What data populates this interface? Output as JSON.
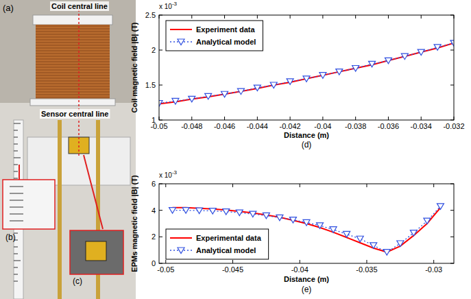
{
  "photo": {
    "panel_label": "(a)",
    "labels": [
      "Coil central line",
      "Sensor central line"
    ],
    "insets": [
      "(b)",
      "(c)"
    ]
  },
  "chart_data": [
    {
      "type": "line",
      "panel_label": "(d)",
      "x_label": "Distance (m)",
      "y_label": "Coil magnetic field |B| (T)",
      "annotations": [
        {
          "text": "x 10",
          "superscript": "-3"
        }
      ],
      "x": [
        -0.05,
        -0.049,
        -0.048,
        -0.047,
        -0.046,
        -0.045,
        -0.044,
        -0.043,
        -0.042,
        -0.041,
        -0.04,
        -0.039,
        -0.038,
        -0.037,
        -0.036,
        -0.035,
        -0.034,
        -0.033,
        -0.032
      ],
      "xlim": [
        -0.05,
        -0.032
      ],
      "xticks": [
        -0.05,
        -0.048,
        -0.046,
        -0.044,
        -0.042,
        -0.04,
        -0.038,
        -0.036,
        -0.034,
        -0.032
      ],
      "ylim": [
        1,
        2.5
      ],
      "yticks": [
        1,
        1.5,
        2,
        2.5
      ],
      "legend": "upper left",
      "series": [
        {
          "name": "Experiment data",
          "color": "#ff0000",
          "line_style": "solid",
          "marker": "none",
          "values": [
            1.23,
            1.26,
            1.3,
            1.33,
            1.37,
            1.41,
            1.45,
            1.5,
            1.54,
            1.59,
            1.64,
            1.69,
            1.74,
            1.79,
            1.85,
            1.91,
            1.97,
            2.03,
            2.1
          ]
        },
        {
          "name": "Analytical model",
          "color": "#3050e0",
          "line_style": "dotted",
          "marker": "triangle-down",
          "values": [
            1.24,
            1.27,
            1.3,
            1.34,
            1.37,
            1.41,
            1.46,
            1.5,
            1.55,
            1.59,
            1.64,
            1.69,
            1.74,
            1.8,
            1.85,
            1.91,
            1.97,
            2.04,
            2.1
          ]
        }
      ]
    },
    {
      "type": "line",
      "panel_label": "(e)",
      "x_label": "Distance (m)",
      "y_label": "EPMs magnetic field |B| (T)",
      "annotations": [
        {
          "text": "x 10",
          "superscript": "-3"
        }
      ],
      "x": [
        -0.0495,
        -0.0485,
        -0.0475,
        -0.0465,
        -0.0455,
        -0.0445,
        -0.0435,
        -0.0425,
        -0.0415,
        -0.0405,
        -0.0395,
        -0.0385,
        -0.0375,
        -0.0365,
        -0.0355,
        -0.0345,
        -0.0335,
        -0.0325,
        -0.0315,
        -0.0305,
        -0.0295
      ],
      "xlim": [
        -0.0505,
        -0.0285
      ],
      "xticks": [
        -0.05,
        -0.045,
        -0.04,
        -0.035,
        -0.03
      ],
      "ylim": [
        0,
        6
      ],
      "yticks": [
        0,
        2,
        4,
        6
      ],
      "legend": "lower left",
      "series": [
        {
          "name": "Experimental data",
          "color": "#ff0000",
          "line_style": "solid",
          "marker": "none",
          "values": [
            4.2,
            4.2,
            4.15,
            4.1,
            4.02,
            3.92,
            3.8,
            3.65,
            3.48,
            3.25,
            3.0,
            2.7,
            2.35,
            1.95,
            1.55,
            1.15,
            0.85,
            1.3,
            2.1,
            3.0,
            4.2
          ]
        },
        {
          "name": "Analytical model",
          "color": "#3050e0",
          "line_style": "dotted",
          "marker": "triangle-down",
          "values": [
            4.0,
            4.0,
            3.98,
            3.95,
            3.9,
            3.82,
            3.72,
            3.6,
            3.45,
            3.28,
            3.08,
            2.85,
            2.55,
            2.2,
            1.85,
            1.35,
            0.85,
            1.5,
            2.3,
            3.2,
            4.3
          ]
        }
      ]
    }
  ]
}
